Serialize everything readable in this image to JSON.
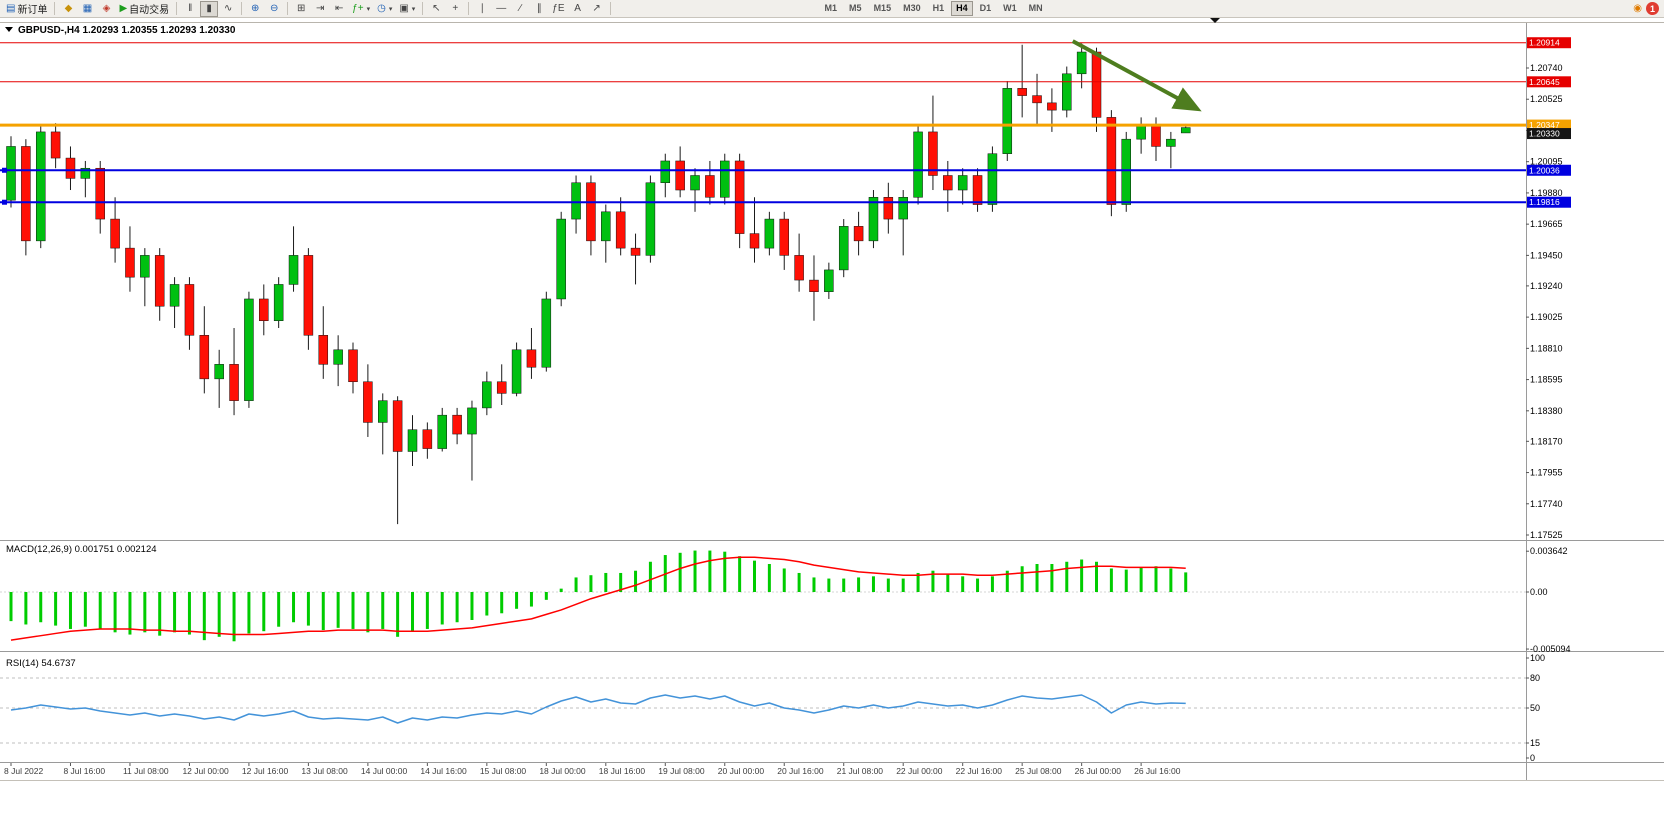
{
  "toolbar": {
    "new_order": {
      "label": "新订单"
    },
    "auto_trading": {
      "label": "自动交易"
    },
    "timeframes": [
      "M1",
      "M5",
      "M15",
      "M30",
      "H1",
      "H4",
      "D1",
      "W1",
      "MN"
    ],
    "active_timeframe": "H4",
    "notification_badge": "1"
  },
  "icons": {
    "new-order-icon": "▤",
    "market-watch-icon": "◆",
    "data-window-icon": "▦",
    "navigator-icon": "◈",
    "auto-trading-icon": "▶",
    "bar-chart-icon": "‖",
    "candlestick-chart-icon": "▮",
    "line-chart-icon": "∿",
    "zoom-in-icon": "⊕",
    "zoom-out-icon": "⊖",
    "tile-windows-icon": "⊞",
    "auto-scroll-icon": "⇥",
    "chart-shift-icon": "⇤",
    "indicators-icon": "ƒ+",
    "periods-icon": "◷",
    "templates-icon": "▣",
    "cursor-icon": "↖",
    "crosshair-icon": "+",
    "vertical-line-icon": "∣",
    "horizontal-line-icon": "—",
    "trendline-icon": "∕",
    "channel-icon": "∥",
    "fibonacci-icon": "ƒE",
    "text-icon": "A",
    "arrows-icon": "↗",
    "caret-icon": "▾",
    "alert-icon": "◉"
  },
  "chart": {
    "collapse_marker": "▼",
    "title": "GBPUSD-,H4",
    "ohlc": "1.20293 1.20355 1.20293 1.20330"
  },
  "chart_data": {
    "type": "candlestick",
    "symbol": "GBPUSD-",
    "period": "H4",
    "title_line": "GBPUSD-,H4  1.20293 1.20355 1.20293 1.20330",
    "colors": {
      "up": "#00C011",
      "down": "#FF1005",
      "wick": "#1a1a1a",
      "macd_hist": "#00CC00",
      "macd_signal": "#FF0000",
      "rsi_line": "#4393D9",
      "level_dash": "#aaaaaa"
    },
    "price_axis": [
      "1.20740",
      "1.20525",
      "1.20310",
      "1.20095",
      "1.19880",
      "1.19665",
      "1.19450",
      "1.19240",
      "1.19025",
      "1.18810",
      "1.18595",
      "1.18380",
      "1.18170",
      "1.17955",
      "1.17740",
      "1.17525"
    ],
    "hlines": [
      {
        "price": 1.20914,
        "label": "1.20914",
        "color": "#E60000",
        "width": 1,
        "handles": false
      },
      {
        "price": 1.20645,
        "label": "1.20645",
        "color": "#E60000",
        "width": 1,
        "handles": false
      },
      {
        "price": 1.20347,
        "label": "1.20347",
        "color": "#F5A200",
        "width": 3,
        "handles": false
      },
      {
        "price": 1.20036,
        "label": "1.20036",
        "color": "#0000E0",
        "width": 2,
        "handles": true
      },
      {
        "price": 1.19816,
        "label": "1.19816",
        "color": "#0000E0",
        "width": 2,
        "handles": true
      }
    ],
    "current_price": {
      "value": 1.2033,
      "label": "1.20330",
      "color": "#151515"
    },
    "arrow": {
      "bar1": 71.4,
      "price1": 1.20925,
      "bar2": 79.6,
      "price2": 1.20468,
      "color": "#4E7D1F"
    },
    "time_labels": [
      "8 Jul 2022",
      "8 Jul 16:00",
      "11 Jul 08:00",
      "12 Jul 00:00",
      "12 Jul 16:00",
      "13 Jul 08:00",
      "14 Jul 00:00",
      "14 Jul 16:00",
      "15 Jul 08:00",
      "18 Jul 00:00",
      "18 Jul 16:00",
      "19 Jul 08:00",
      "20 Jul 00:00",
      "20 Jul 16:00",
      "21 Jul 08:00",
      "22 Jul 00:00",
      "22 Jul 16:00",
      "25 Jul 08:00",
      "26 Jul 00:00",
      "26 Jul 16:00"
    ],
    "candles": [
      [
        1.1983,
        1.2027,
        1.1978,
        1.202
      ],
      [
        1.202,
        1.2025,
        1.1945,
        1.1955
      ],
      [
        1.1955,
        1.2035,
        1.195,
        1.203
      ],
      [
        1.203,
        1.2036,
        1.2005,
        1.2012
      ],
      [
        1.2012,
        1.202,
        1.199,
        1.1998
      ],
      [
        1.1998,
        1.201,
        1.1985,
        1.2005
      ],
      [
        1.2005,
        1.201,
        1.196,
        1.197
      ],
      [
        1.197,
        1.1985,
        1.194,
        1.195
      ],
      [
        1.195,
        1.1965,
        1.192,
        1.193
      ],
      [
        1.193,
        1.195,
        1.191,
        1.1945
      ],
      [
        1.1945,
        1.195,
        1.19,
        1.191
      ],
      [
        1.191,
        1.193,
        1.1895,
        1.1925
      ],
      [
        1.1925,
        1.193,
        1.188,
        1.189
      ],
      [
        1.189,
        1.191,
        1.185,
        1.186
      ],
      [
        1.186,
        1.188,
        1.184,
        1.187
      ],
      [
        1.187,
        1.1895,
        1.1835,
        1.1845
      ],
      [
        1.1845,
        1.192,
        1.184,
        1.1915
      ],
      [
        1.1915,
        1.1925,
        1.189,
        1.19
      ],
      [
        1.19,
        1.193,
        1.1895,
        1.1925
      ],
      [
        1.1925,
        1.1965,
        1.192,
        1.1945
      ],
      [
        1.1945,
        1.195,
        1.188,
        1.189
      ],
      [
        1.189,
        1.191,
        1.186,
        1.187
      ],
      [
        1.187,
        1.189,
        1.1855,
        1.188
      ],
      [
        1.188,
        1.1885,
        1.185,
        1.1858
      ],
      [
        1.1858,
        1.187,
        1.182,
        1.183
      ],
      [
        1.183,
        1.185,
        1.1808,
        1.1845
      ],
      [
        1.1845,
        1.1848,
        1.176,
        1.181
      ],
      [
        1.181,
        1.1835,
        1.18,
        1.1825
      ],
      [
        1.1825,
        1.183,
        1.1805,
        1.1812
      ],
      [
        1.1812,
        1.184,
        1.181,
        1.1835
      ],
      [
        1.1835,
        1.184,
        1.1815,
        1.1822
      ],
      [
        1.1822,
        1.1845,
        1.179,
        1.184
      ],
      [
        1.184,
        1.1865,
        1.1835,
        1.1858
      ],
      [
        1.1858,
        1.187,
        1.1842,
        1.185
      ],
      [
        1.185,
        1.1885,
        1.1848,
        1.188
      ],
      [
        1.188,
        1.1895,
        1.186,
        1.1868
      ],
      [
        1.1868,
        1.192,
        1.1865,
        1.1915
      ],
      [
        1.1915,
        1.1975,
        1.191,
        1.197
      ],
      [
        1.197,
        1.2,
        1.196,
        1.1995
      ],
      [
        1.1995,
        1.2,
        1.1945,
        1.1955
      ],
      [
        1.1955,
        1.198,
        1.194,
        1.1975
      ],
      [
        1.1975,
        1.1985,
        1.1945,
        1.195
      ],
      [
        1.195,
        1.196,
        1.1925,
        1.1945
      ],
      [
        1.1945,
        1.2,
        1.194,
        1.1995
      ],
      [
        1.1995,
        1.2015,
        1.1985,
        1.201
      ],
      [
        1.201,
        1.202,
        1.1985,
        1.199
      ],
      [
        1.199,
        1.2005,
        1.1975,
        1.2
      ],
      [
        1.2,
        1.201,
        1.198,
        1.1985
      ],
      [
        1.1985,
        1.2015,
        1.198,
        1.201
      ],
      [
        1.201,
        1.2015,
        1.195,
        1.196
      ],
      [
        1.196,
        1.1985,
        1.194,
        1.195
      ],
      [
        1.195,
        1.1975,
        1.1945,
        1.197
      ],
      [
        1.197,
        1.1975,
        1.1935,
        1.1945
      ],
      [
        1.1945,
        1.196,
        1.192,
        1.1928
      ],
      [
        1.1928,
        1.1945,
        1.19,
        1.192
      ],
      [
        1.192,
        1.194,
        1.1915,
        1.1935
      ],
      [
        1.1935,
        1.197,
        1.193,
        1.1965
      ],
      [
        1.1965,
        1.1975,
        1.1945,
        1.1955
      ],
      [
        1.1955,
        1.199,
        1.195,
        1.1985
      ],
      [
        1.1985,
        1.1995,
        1.196,
        1.197
      ],
      [
        1.197,
        1.199,
        1.1945,
        1.1985
      ],
      [
        1.1985,
        1.2035,
        1.198,
        1.203
      ],
      [
        1.203,
        1.2055,
        1.199,
        1.2
      ],
      [
        1.2,
        1.201,
        1.1975,
        1.199
      ],
      [
        1.199,
        1.2005,
        1.198,
        1.2
      ],
      [
        1.2,
        1.2005,
        1.1975,
        1.198
      ],
      [
        1.198,
        1.202,
        1.1975,
        1.2015
      ],
      [
        1.2015,
        1.2065,
        1.201,
        1.206
      ],
      [
        1.206,
        1.209,
        1.204,
        1.2055
      ],
      [
        1.2055,
        1.207,
        1.2035,
        1.205
      ],
      [
        1.205,
        1.206,
        1.203,
        1.2045
      ],
      [
        1.2045,
        1.2075,
        1.204,
        1.207
      ],
      [
        1.207,
        1.2091,
        1.206,
        1.2085
      ],
      [
        1.2085,
        1.2088,
        1.203,
        1.204
      ],
      [
        1.204,
        1.2045,
        1.1972,
        1.198
      ],
      [
        1.198,
        1.203,
        1.1975,
        1.2025
      ],
      [
        1.2025,
        1.204,
        1.2015,
        1.2035
      ],
      [
        1.2035,
        1.204,
        1.201,
        1.202
      ],
      [
        1.202,
        1.203,
        1.2005,
        1.2025
      ],
      [
        1.20293,
        1.20355,
        1.20293,
        1.2033
      ]
    ],
    "macd": {
      "label": "MACD(12,26,9) 0.001751 0.002124",
      "axis": [
        {
          "v": 0.003642,
          "t": "0.003642"
        },
        {
          "v": 0,
          "t": "0.00"
        },
        {
          "v": -0.005094,
          "t": "-0.005094"
        }
      ],
      "histogram": [
        -0.0026,
        -0.0029,
        -0.0027,
        -0.003,
        -0.0033,
        -0.0031,
        -0.0033,
        -0.0036,
        -0.0038,
        -0.0036,
        -0.0039,
        -0.0036,
        -0.0038,
        -0.0043,
        -0.004,
        -0.0044,
        -0.0037,
        -0.0035,
        -0.0031,
        -0.0027,
        -0.003,
        -0.0034,
        -0.0032,
        -0.0033,
        -0.0036,
        -0.0033,
        -0.004,
        -0.0035,
        -0.0033,
        -0.0029,
        -0.0027,
        -0.0025,
        -0.0021,
        -0.0019,
        -0.0015,
        -0.0013,
        -0.0007,
        0.0003,
        0.0013,
        0.0015,
        0.0017,
        0.0017,
        0.0019,
        0.0027,
        0.0033,
        0.0035,
        0.0037,
        0.0037,
        0.0036,
        0.0032,
        0.0028,
        0.0025,
        0.0021,
        0.0017,
        0.0013,
        0.0012,
        0.0012,
        0.0013,
        0.0014,
        0.0012,
        0.0012,
        0.0017,
        0.0019,
        0.0016,
        0.0014,
        0.0012,
        0.0014,
        0.0019,
        0.0023,
        0.0025,
        0.0025,
        0.0027,
        0.0029,
        0.0027,
        0.0021,
        0.002,
        0.0022,
        0.0023,
        0.0021,
        0.001751
      ],
      "signal": [
        -0.0043,
        -0.0041,
        -0.0039,
        -0.0037,
        -0.0035,
        -0.0034,
        -0.0033,
        -0.0033,
        -0.0033,
        -0.0034,
        -0.0034,
        -0.0035,
        -0.0035,
        -0.0036,
        -0.0037,
        -0.0038,
        -0.0038,
        -0.0038,
        -0.0037,
        -0.0036,
        -0.0035,
        -0.0035,
        -0.0034,
        -0.0034,
        -0.0034,
        -0.0034,
        -0.0035,
        -0.0035,
        -0.0035,
        -0.0034,
        -0.0033,
        -0.0032,
        -0.003,
        -0.0028,
        -0.0026,
        -0.0024,
        -0.002,
        -0.0016,
        -0.0011,
        -0.0006,
        -0.0002,
        0.0002,
        0.0006,
        0.0011,
        0.0016,
        0.0021,
        0.0025,
        0.0028,
        0.003,
        0.0031,
        0.0031,
        0.003,
        0.0029,
        0.0027,
        0.0024,
        0.0022,
        0.002,
        0.0018,
        0.0017,
        0.0016,
        0.0015,
        0.0015,
        0.0016,
        0.0016,
        0.0016,
        0.0015,
        0.0015,
        0.0016,
        0.0017,
        0.0018,
        0.0019,
        0.0021,
        0.0022,
        0.0023,
        0.0023,
        0.0022,
        0.0022,
        0.0022,
        0.0022,
        0.002124
      ]
    },
    "rsi": {
      "label": "RSI(14) 54.6737",
      "axis": [
        {
          "v": 100,
          "t": "100"
        },
        {
          "v": 80,
          "t": "80"
        },
        {
          "v": 50,
          "t": "50"
        },
        {
          "v": 15,
          "t": "15"
        },
        {
          "v": 0,
          "t": "0"
        }
      ],
      "levels": [
        80,
        50,
        15
      ],
      "values": [
        48,
        50,
        53,
        51,
        49,
        50,
        47,
        45,
        43,
        45,
        42,
        44,
        42,
        39,
        41,
        38,
        44,
        42,
        44,
        47,
        41,
        39,
        40,
        39,
        38,
        41,
        35,
        40,
        38,
        41,
        40,
        43,
        45,
        44,
        47,
        44,
        51,
        57,
        61,
        56,
        59,
        55,
        54,
        60,
        63,
        60,
        62,
        59,
        62,
        56,
        52,
        55,
        50,
        48,
        45,
        48,
        52,
        50,
        53,
        50,
        52,
        56,
        54,
        52,
        53,
        50,
        53,
        58,
        62,
        60,
        59,
        61,
        63,
        56,
        45,
        53,
        56,
        54,
        55,
        54.6737
      ]
    }
  }
}
